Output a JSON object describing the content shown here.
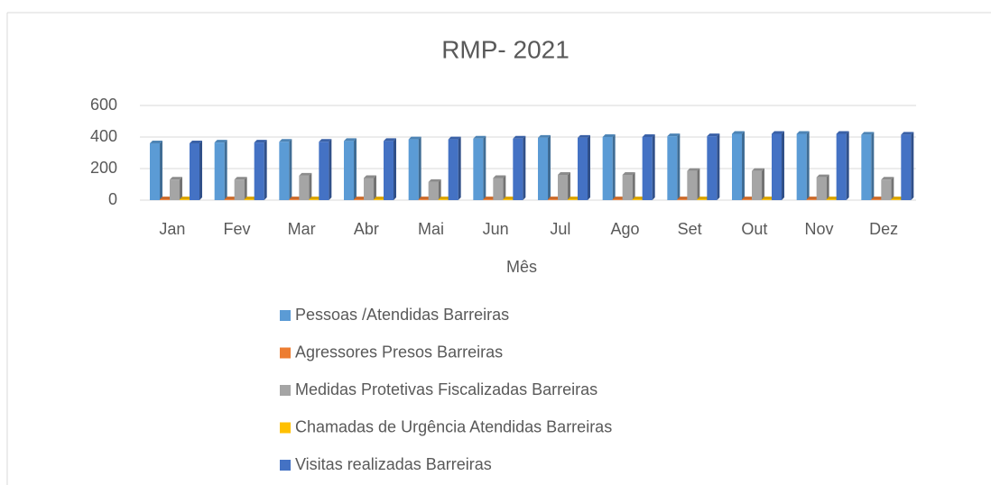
{
  "chart_data": {
    "type": "bar",
    "title": "RMP- 2021",
    "x_label": "Mês",
    "categories": [
      "Jan",
      "Fev",
      "Mar",
      "Abr",
      "Mai",
      "Jun",
      "Jul",
      "Ago",
      "Set",
      "Out",
      "Nov",
      "Dez"
    ],
    "series": [
      {
        "name": "Pessoas /Atendidas Barreiras",
        "color": "#5b9bd5",
        "values": [
          360,
          365,
          370,
          375,
          385,
          390,
          395,
          400,
          405,
          420,
          420,
          415
        ]
      },
      {
        "name": "Agressores Presos Barreiras",
        "color": "#ed7d31",
        "values": [
          5,
          5,
          5,
          5,
          5,
          5,
          5,
          5,
          5,
          5,
          5,
          5
        ]
      },
      {
        "name": "Medidas Protetivas Fiscalizadas Barreiras",
        "color": "#a5a5a5",
        "values": [
          130,
          130,
          155,
          140,
          115,
          140,
          160,
          160,
          185,
          185,
          145,
          130
        ]
      },
      {
        "name": "Chamadas de Urgência Atendidas Barreiras",
        "color": "#ffc000",
        "values": [
          5,
          5,
          5,
          5,
          5,
          5,
          5,
          5,
          5,
          5,
          5,
          5
        ]
      },
      {
        "name": "Visitas realizadas Barreiras",
        "color": "#4472c4",
        "values": [
          360,
          365,
          370,
          375,
          385,
          390,
          395,
          400,
          405,
          420,
          420,
          415
        ]
      }
    ],
    "ylim": [
      0,
      600
    ],
    "yticks": [
      0,
      200,
      400,
      600
    ],
    "grid": true,
    "legend": "bottom"
  }
}
